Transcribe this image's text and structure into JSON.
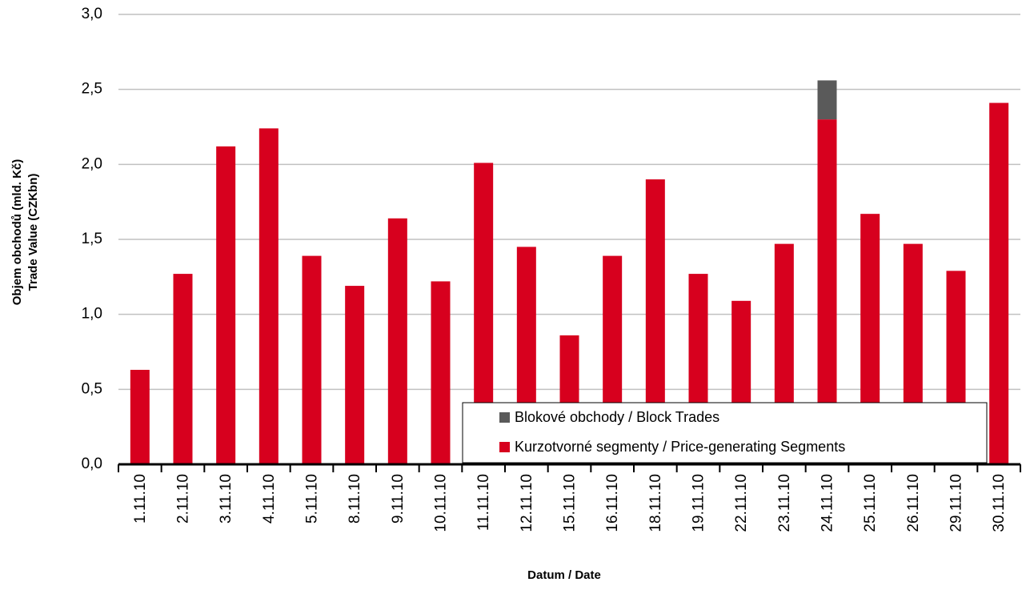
{
  "chart_data": {
    "type": "stacked_bar",
    "y_label": [
      "Objem obchodů (mld. Kč)",
      "Trade Value (CZKbn)"
    ],
    "x_label": "Datum / Date",
    "categories": [
      "1.11.10",
      "2.11.10",
      "3.11.10",
      "4.11.10",
      "5.11.10",
      "8.11.10",
      "9.11.10",
      "10.11.10",
      "11.11.10",
      "12.11.10",
      "15.11.10",
      "16.11.10",
      "18.11.10",
      "19.11.10",
      "22.11.10",
      "23.11.10",
      "24.11.10",
      "25.11.10",
      "26.11.10",
      "29.11.10",
      "30.11.10"
    ],
    "series": [
      {
        "name": "Kurzotvorné segmenty / Price-generating Segments",
        "color": "#d7001e",
        "values": [
          0.63,
          1.27,
          2.12,
          2.24,
          1.39,
          1.19,
          1.64,
          1.22,
          2.01,
          1.45,
          0.86,
          1.39,
          1.9,
          1.27,
          1.09,
          1.47,
          2.3,
          1.67,
          1.47,
          1.29,
          2.41
        ]
      },
      {
        "name": "Blokové obchody / Block Trades",
        "color": "#5a5a5a",
        "values": [
          0,
          0,
          0,
          0,
          0,
          0,
          0,
          0,
          0,
          0,
          0,
          0,
          0,
          0,
          0,
          0,
          0.26,
          0,
          0,
          0,
          0
        ]
      }
    ],
    "ylim": [
      0,
      3
    ],
    "yticks": [
      {
        "value": 0,
        "label": "0,0"
      },
      {
        "value": 0.5,
        "label": "0,5"
      },
      {
        "value": 1,
        "label": "1,0"
      },
      {
        "value": 1.5,
        "label": "1,5"
      },
      {
        "value": 2,
        "label": "2,0"
      },
      {
        "value": 2.5,
        "label": "2,5"
      },
      {
        "value": 3,
        "label": "3,0"
      }
    ],
    "grid": true
  }
}
